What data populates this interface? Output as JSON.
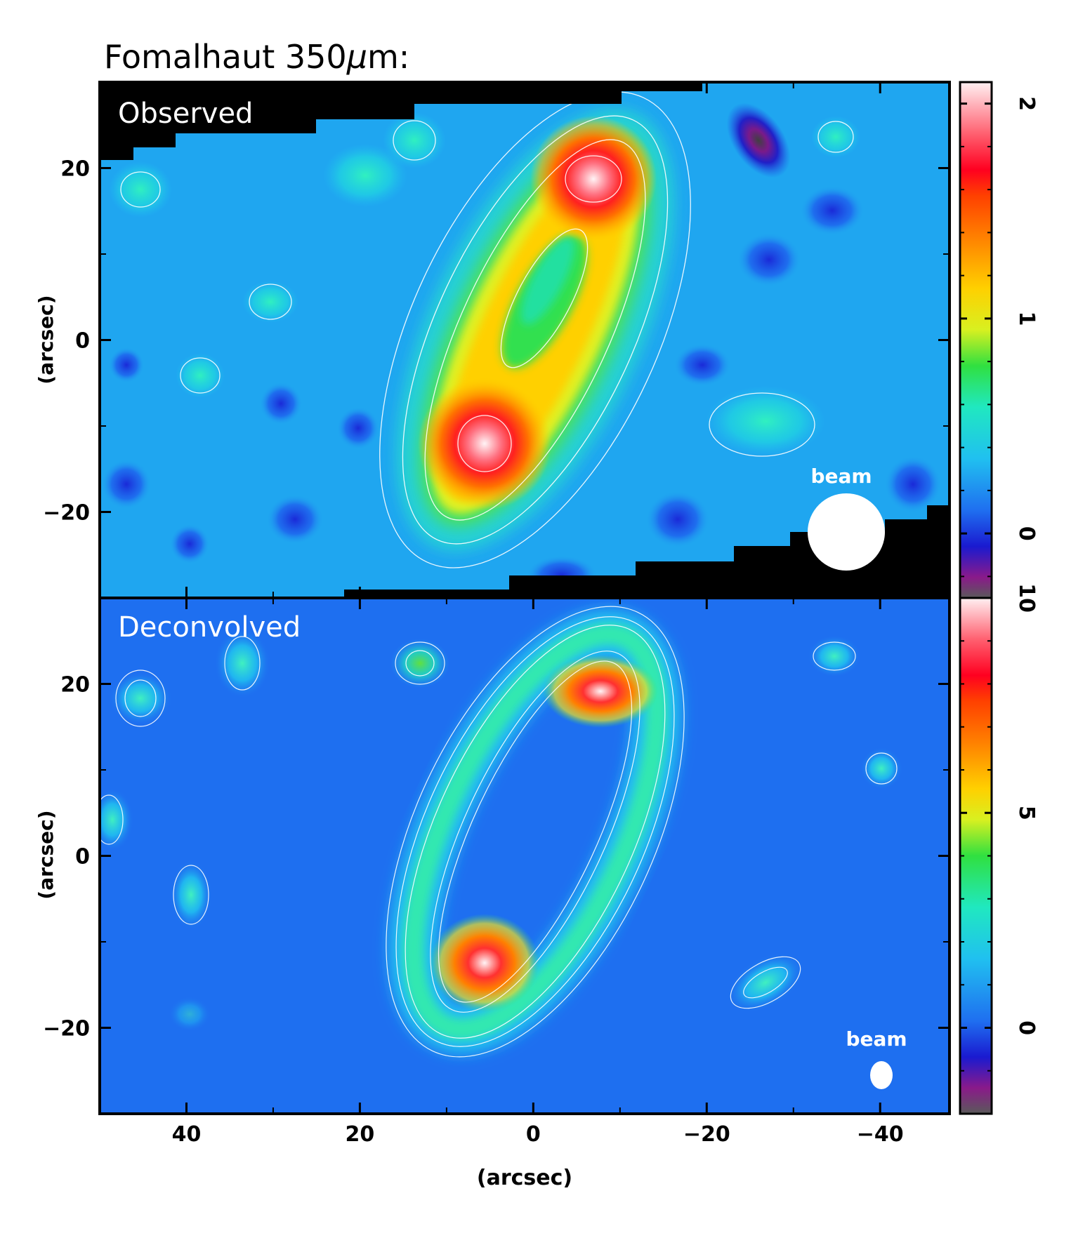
{
  "title": {
    "prefix": "Fomalhaut 350",
    "mu": "μ",
    "suffix": "m:"
  },
  "x_axis": {
    "label": "(arcsec)",
    "ticks": [
      {
        "label": "40",
        "value": 40
      },
      {
        "label": "20",
        "value": 20
      },
      {
        "label": "0",
        "value": 0
      },
      {
        "label": "−20",
        "value": -20
      },
      {
        "label": "−40",
        "value": -40
      }
    ]
  },
  "chart_data": [
    {
      "type": "heatmap",
      "panel_label": "Observed",
      "beam_label": "beam",
      "xlim": [
        50,
        -48
      ],
      "ylim": [
        -30,
        30
      ],
      "ylabel": "(arcsec)",
      "y_ticks": [
        {
          "label": "20",
          "value": 20
        },
        {
          "label": "0",
          "value": 0
        },
        {
          "label": "−20",
          "value": -20
        }
      ],
      "colorbar": {
        "range": [
          -0.3,
          2.1
        ],
        "ticks": [
          {
            "label": "2",
            "value": 2
          },
          {
            "label": "1",
            "value": 1
          },
          {
            "label": "0",
            "value": 0
          }
        ]
      },
      "peaks": [
        {
          "x": 6,
          "y": -12,
          "value": 2.0
        },
        {
          "x": -7,
          "y": 18,
          "value": 1.9
        }
      ],
      "ring": {
        "center_x": 0,
        "center_y": 3,
        "semi_major": 22,
        "semi_minor": 8,
        "position_angle_deg": 25
      }
    },
    {
      "type": "heatmap",
      "panel_label": "Deconvolved",
      "beam_label": "beam",
      "xlim": [
        50,
        -48
      ],
      "ylim": [
        -30,
        30
      ],
      "ylabel": "(arcsec)",
      "y_ticks": [
        {
          "label": "20",
          "value": 20
        },
        {
          "label": "0",
          "value": 0
        },
        {
          "label": "−20",
          "value": -20
        }
      ],
      "colorbar": {
        "range": [
          -2,
          10
        ],
        "ticks": [
          {
            "label": "10",
            "value": 10
          },
          {
            "label": "5",
            "value": 5
          },
          {
            "label": "0",
            "value": 0
          }
        ]
      },
      "peaks": [
        {
          "x": 7,
          "y": -13,
          "value": 10
        },
        {
          "x": -7,
          "y": 19,
          "value": 8
        }
      ],
      "ring": {
        "center_x": 0,
        "center_y": 3,
        "semi_major": 21,
        "semi_minor": 6,
        "position_angle_deg": 25
      }
    }
  ]
}
